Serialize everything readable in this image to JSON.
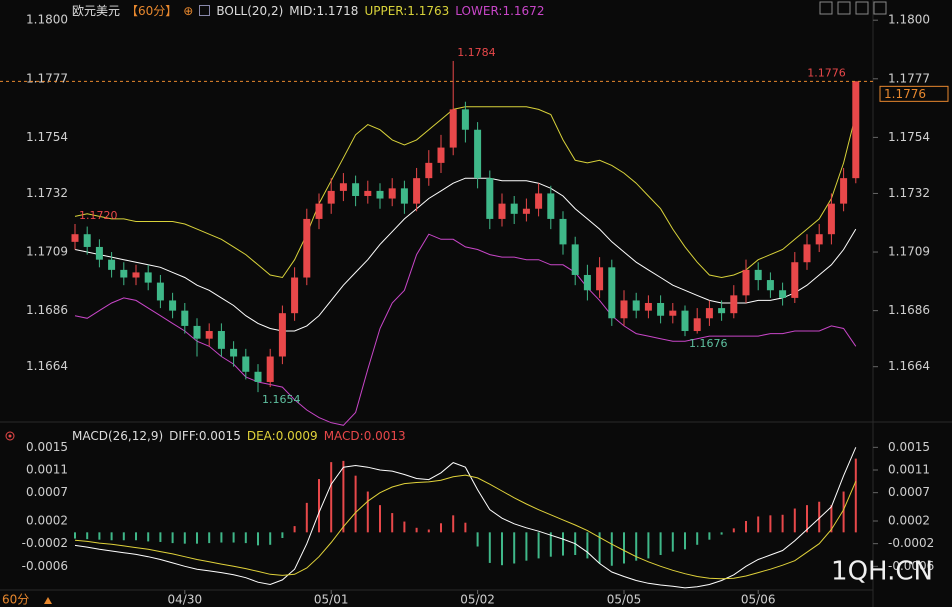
{
  "chart_data": [
    {
      "type": "candlestick",
      "title": "欧元美元",
      "period": "【60分】",
      "indicator": "BOLL(20,2)",
      "up_color": "#e8484a",
      "down_color": "#3fb889",
      "open": [
        1.1713,
        1.1716,
        1.1711,
        1.1706,
        1.1702,
        1.1699,
        1.1701,
        1.1697,
        1.169,
        1.1686,
        1.168,
        1.1675,
        1.1678,
        1.1671,
        1.1668,
        1.1662,
        1.1658,
        1.1668,
        1.1685,
        1.1699,
        1.1722,
        1.1728,
        1.1733,
        1.1736,
        1.1731,
        1.1733,
        1.173,
        1.1734,
        1.1728,
        1.1738,
        1.1744,
        1.175,
        1.1765,
        1.1757,
        1.1738,
        1.1722,
        1.1728,
        1.1724,
        1.1726,
        1.1732,
        1.1722,
        1.1712,
        1.17,
        1.1694,
        1.1703,
        1.1683,
        1.169,
        1.1686,
        1.1689,
        1.1684,
        1.1686,
        1.1678,
        1.1683,
        1.1687,
        1.1685,
        1.1692,
        1.1702,
        1.1698,
        1.1694,
        1.1691,
        1.1705,
        1.1712,
        1.1716,
        1.1728,
        1.1738
      ],
      "high": [
        1.172,
        1.1719,
        1.1714,
        1.1709,
        1.1705,
        1.1704,
        1.1704,
        1.17,
        1.1693,
        1.1689,
        1.1683,
        1.1681,
        1.1681,
        1.1674,
        1.1671,
        1.1665,
        1.1671,
        1.1688,
        1.1703,
        1.1726,
        1.1732,
        1.1738,
        1.174,
        1.1739,
        1.1737,
        1.1736,
        1.1738,
        1.1737,
        1.1742,
        1.1749,
        1.1755,
        1.1784,
        1.1768,
        1.176,
        1.1741,
        1.1732,
        1.1731,
        1.173,
        1.1736,
        1.1735,
        1.1725,
        1.1715,
        1.1704,
        1.1707,
        1.1706,
        1.1694,
        1.1693,
        1.1692,
        1.1692,
        1.1689,
        1.1688,
        1.1687,
        1.169,
        1.169,
        1.1696,
        1.1706,
        1.1705,
        1.1701,
        1.1697,
        1.1709,
        1.1716,
        1.172,
        1.1732,
        1.1742,
        1.1776
      ],
      "low": [
        1.171,
        1.1708,
        1.1703,
        1.1699,
        1.1696,
        1.1696,
        1.1694,
        1.1687,
        1.1683,
        1.1677,
        1.1668,
        1.1672,
        1.1668,
        1.1664,
        1.1659,
        1.1654,
        1.1656,
        1.1665,
        1.1682,
        1.1696,
        1.1718,
        1.1724,
        1.1729,
        1.1727,
        1.1728,
        1.1726,
        1.1727,
        1.1724,
        1.1725,
        1.1735,
        1.174,
        1.1747,
        1.1752,
        1.1734,
        1.1718,
        1.1719,
        1.172,
        1.1721,
        1.1723,
        1.1718,
        1.1708,
        1.1696,
        1.169,
        1.1691,
        1.168,
        1.168,
        1.1683,
        1.1683,
        1.1681,
        1.1681,
        1.1676,
        1.1677,
        1.168,
        1.1682,
        1.1683,
        1.1689,
        1.1694,
        1.1691,
        1.1688,
        1.1689,
        1.1702,
        1.1709,
        1.1712,
        1.1725,
        1.1736
      ],
      "close": [
        1.1716,
        1.1711,
        1.1706,
        1.1702,
        1.1699,
        1.1701,
        1.1697,
        1.169,
        1.1686,
        1.168,
        1.1675,
        1.1678,
        1.1671,
        1.1668,
        1.1662,
        1.1658,
        1.1668,
        1.1685,
        1.1699,
        1.1722,
        1.1728,
        1.1733,
        1.1736,
        1.1731,
        1.1733,
        1.173,
        1.1734,
        1.1728,
        1.1738,
        1.1744,
        1.175,
        1.1765,
        1.1757,
        1.1738,
        1.1722,
        1.1728,
        1.1724,
        1.1726,
        1.1732,
        1.1722,
        1.1712,
        1.17,
        1.1694,
        1.1703,
        1.1683,
        1.169,
        1.1686,
        1.1689,
        1.1684,
        1.1686,
        1.1678,
        1.1683,
        1.1687,
        1.1685,
        1.1692,
        1.1702,
        1.1698,
        1.1694,
        1.1691,
        1.1705,
        1.1712,
        1.1716,
        1.1728,
        1.1738,
        1.1776
      ],
      "high_labels": [
        "1.1720",
        null,
        null,
        null,
        null,
        null,
        null,
        null,
        null,
        null,
        null,
        null,
        null,
        null,
        null,
        null,
        null,
        null,
        null,
        null,
        null,
        null,
        null,
        null,
        null,
        null,
        null,
        null,
        null,
        null,
        null,
        "1.1784",
        null,
        null,
        null,
        null,
        null,
        null,
        null,
        null,
        null,
        null,
        null,
        null,
        null,
        null,
        null,
        null,
        null,
        null,
        null,
        null,
        null,
        null,
        null,
        null,
        null,
        null,
        null,
        null,
        null,
        null,
        null,
        null,
        "1.1776"
      ],
      "low_labels": [
        null,
        null,
        null,
        null,
        null,
        null,
        null,
        null,
        null,
        null,
        null,
        null,
        null,
        null,
        null,
        "1.1654",
        null,
        null,
        null,
        null,
        null,
        null,
        null,
        null,
        null,
        null,
        null,
        null,
        null,
        null,
        null,
        null,
        null,
        null,
        null,
        null,
        null,
        null,
        null,
        null,
        null,
        null,
        null,
        null,
        null,
        null,
        null,
        null,
        null,
        null,
        "1.1676",
        null,
        null,
        null,
        null,
        null,
        null,
        null,
        null,
        null,
        null,
        null,
        null,
        null,
        null
      ],
      "series": [
        {
          "name": "MID:1.1718",
          "color": "#ffffff",
          "values": [
            1.171,
            1.1709,
            1.1708,
            1.1707,
            1.1706,
            1.1705,
            1.1704,
            1.1703,
            1.1701,
            1.1699,
            1.1696,
            1.1694,
            1.1691,
            1.1688,
            1.1684,
            1.1681,
            1.1679,
            1.1678,
            1.1678,
            1.168,
            1.1684,
            1.169,
            1.1696,
            1.1701,
            1.1706,
            1.1712,
            1.1717,
            1.1722,
            1.1726,
            1.173,
            1.1733,
            1.1736,
            1.1738,
            1.1738,
            1.1738,
            1.1737,
            1.1737,
            1.1737,
            1.1736,
            1.1734,
            1.1731,
            1.1726,
            1.1722,
            1.1718,
            1.1713,
            1.1709,
            1.1705,
            1.1702,
            1.1699,
            1.1696,
            1.1694,
            1.1692,
            1.169,
            1.1689,
            1.1689,
            1.1689,
            1.169,
            1.169,
            1.1691,
            1.1693,
            1.1696,
            1.17,
            1.1704,
            1.171,
            1.1718
          ]
        },
        {
          "name": "UPPER:1.1763",
          "color": "#d8d23a",
          "values": [
            1.1723,
            1.1724,
            1.1723,
            1.1722,
            1.1722,
            1.1721,
            1.1721,
            1.1721,
            1.1721,
            1.172,
            1.1718,
            1.1716,
            1.1714,
            1.1711,
            1.1708,
            1.1704,
            1.17,
            1.1699,
            1.1706,
            1.1716,
            1.1728,
            1.1737,
            1.1746,
            1.1755,
            1.1759,
            1.1757,
            1.1753,
            1.1751,
            1.1753,
            1.1757,
            1.1761,
            1.1765,
            1.1766,
            1.1766,
            1.1766,
            1.1766,
            1.1766,
            1.1766,
            1.1765,
            1.1763,
            1.1753,
            1.1745,
            1.1744,
            1.1745,
            1.1743,
            1.174,
            1.1736,
            1.1731,
            1.1726,
            1.1718,
            1.1711,
            1.1705,
            1.17,
            1.1699,
            1.17,
            1.1702,
            1.1706,
            1.1708,
            1.171,
            1.1714,
            1.1718,
            1.1722,
            1.173,
            1.1744,
            1.1763
          ]
        },
        {
          "name": "LOWER:1.1672",
          "color": "#c846c8",
          "values": [
            1.1684,
            1.1683,
            1.1686,
            1.1689,
            1.1691,
            1.169,
            1.1687,
            1.1684,
            1.1681,
            1.1678,
            1.1674,
            1.1672,
            1.1668,
            1.1665,
            1.166,
            1.1658,
            1.1657,
            1.1656,
            1.1651,
            1.1647,
            1.1644,
            1.1642,
            1.1641,
            1.1646,
            1.1663,
            1.1679,
            1.1689,
            1.1694,
            1.1708,
            1.1716,
            1.1714,
            1.1714,
            1.1711,
            1.171,
            1.1708,
            1.1707,
            1.1707,
            1.1706,
            1.1706,
            1.1704,
            1.1704,
            1.1701,
            1.1695,
            1.169,
            1.1684,
            1.168,
            1.1677,
            1.1676,
            1.1675,
            1.1674,
            1.1674,
            1.1675,
            1.1676,
            1.1676,
            1.1676,
            1.1676,
            1.1676,
            1.1677,
            1.1677,
            1.1678,
            1.1678,
            1.1678,
            1.168,
            1.1679,
            1.1672
          ]
        }
      ],
      "last_price": 1.1776,
      "last_color": "#e8882e",
      "ylim": [
        1.1647,
        1.1804
      ],
      "yticks": [
        {
          "value": 1.18,
          "label": "1.1800"
        },
        1.1777,
        1.1754,
        1.1732,
        1.1709,
        1.1686,
        1.1664
      ]
    },
    {
      "type": "macd",
      "title": "MACD(26,12,9)",
      "categories": [
        null,
        null,
        null,
        null,
        null,
        null,
        null,
        null,
        null,
        "04/30",
        null,
        null,
        null,
        null,
        null,
        null,
        null,
        null,
        null,
        null,
        null,
        "05/01",
        null,
        null,
        null,
        null,
        null,
        null,
        null,
        null,
        null,
        null,
        null,
        "05/02",
        null,
        null,
        null,
        null,
        null,
        null,
        null,
        null,
        null,
        null,
        null,
        "05/05",
        null,
        null,
        null,
        null,
        null,
        null,
        null,
        null,
        null,
        null,
        "05/06",
        null,
        null,
        null,
        null,
        null,
        null,
        null,
        null
      ],
      "up_color": "#e8484a",
      "down_color": "#3fb889",
      "series": [
        {
          "name": "DIFF:0.0015",
          "color": "#ffffff",
          "values": [
            -0.00023,
            -0.00026,
            -0.0003,
            -0.00033,
            -0.00036,
            -0.00039,
            -0.00043,
            -0.00048,
            -0.00054,
            -0.0006,
            -0.00065,
            -0.00068,
            -0.00071,
            -0.00075,
            -0.0008,
            -0.00088,
            -0.00092,
            -0.00084,
            -0.00065,
            -0.0002,
            0.00035,
            0.00085,
            0.00115,
            0.00118,
            0.00115,
            0.0011,
            0.00108,
            0.00102,
            0.00095,
            0.00093,
            0.00105,
            0.00123,
            0.00115,
            0.00075,
            0.0004,
            0.00025,
            0.00015,
            8e-05,
            2e-05,
            -5e-05,
            -0.00012,
            -0.0002,
            -0.00035,
            -0.00055,
            -0.0007,
            -0.00078,
            -0.00085,
            -0.0009,
            -0.00093,
            -0.00095,
            -0.00098,
            -0.00096,
            -0.00092,
            -0.00085,
            -0.00075,
            -0.0006,
            -0.00048,
            -0.0004,
            -0.00032,
            -0.00015,
            5e-05,
            0.00025,
            0.00045,
            0.001,
            0.0015
          ]
        },
        {
          "name": "DEA:0.0009",
          "color": "#e0d23a",
          "values": [
            -0.00014,
            -0.00016,
            -0.00019,
            -0.00021,
            -0.00024,
            -0.00027,
            -0.0003,
            -0.00034,
            -0.00038,
            -0.00043,
            -0.00048,
            -0.00052,
            -0.00056,
            -0.0006,
            -0.00064,
            -0.00069,
            -0.00074,
            -0.00076,
            -0.00074,
            -0.00063,
            -0.00043,
            -0.00018,
            0.0001,
            0.00035,
            0.00055,
            0.0007,
            0.0008,
            0.00086,
            0.00088,
            0.00089,
            0.00092,
            0.00098,
            0.00101,
            0.00096,
            0.00085,
            0.00073,
            0.00061,
            0.0005,
            0.0004,
            0.00031,
            0.00022,
            0.00013,
            3e-05,
            -9e-05,
            -0.00021,
            -0.00032,
            -0.00043,
            -0.00052,
            -0.0006,
            -0.00067,
            -0.00073,
            -0.00078,
            -0.00081,
            -0.00082,
            -0.00081,
            -0.00077,
            -0.00071,
            -0.00065,
            -0.00058,
            -0.0005,
            -0.00035,
            -0.0002,
            5e-05,
            0.0004,
            0.0009
          ]
        },
        {
          "name": "MACD:0.0013",
          "color": "#e8484a",
          "values": [
            -0.00011,
            -0.00012,
            -0.00013,
            -0.00014,
            -0.00014,
            -0.00014,
            -0.00016,
            -0.00017,
            -0.00019,
            -0.0002,
            -0.0002,
            -0.00019,
            -0.00018,
            -0.00018,
            -0.00019,
            -0.00023,
            -0.00022,
            -0.0001,
            0.00011,
            0.00052,
            0.00094,
            0.00124,
            0.00126,
            0.001,
            0.00072,
            0.00048,
            0.00034,
            0.00019,
            8e-05,
            5e-05,
            0.00016,
            0.0003,
            0.00017,
            -0.00025,
            -0.00054,
            -0.00058,
            -0.00055,
            -0.0005,
            -0.00046,
            -0.00043,
            -0.00041,
            -0.0004,
            -0.00046,
            -0.00055,
            -0.00059,
            -0.00055,
            -0.0005,
            -0.00046,
            -0.0004,
            -0.00034,
            -0.0003,
            -0.00022,
            -0.00013,
            -4e-05,
            7e-05,
            0.0002,
            0.00028,
            0.0003,
            0.00031,
            0.00042,
            0.00048,
            0.00054,
            0.00048,
            0.00072,
            0.0013
          ]
        }
      ],
      "ylim": [
        -0.001,
        0.0017
      ],
      "yticks": [
        0.0015,
        0.0011,
        0.0007,
        0.0002,
        -0.0002,
        -0.0006
      ]
    }
  ],
  "footer": {
    "period": "60分",
    "watermark": "1QH.CN"
  }
}
